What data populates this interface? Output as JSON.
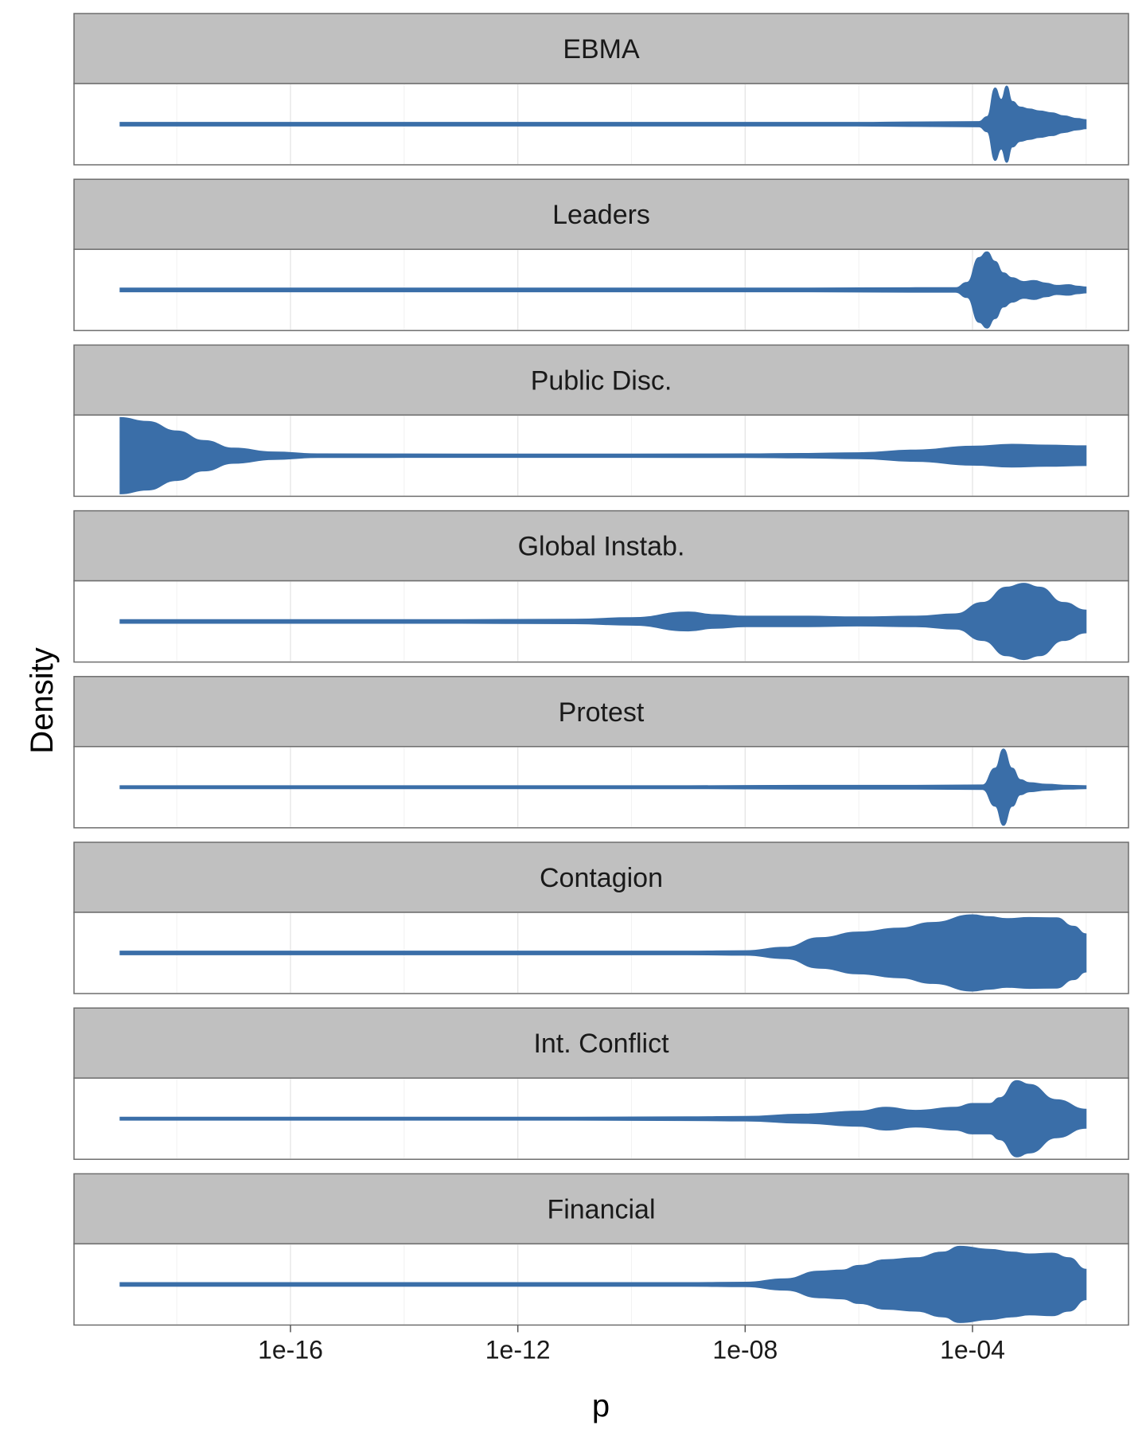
{
  "chart_data": {
    "type": "violin",
    "xlabel": "p",
    "ylabel": "Density",
    "x_scale": "log10",
    "xlim": [
      1e-20,
      0.1
    ],
    "x_ticks": [
      {
        "value": 1e-16,
        "label": "1e-16"
      },
      {
        "value": 1e-12,
        "label": "1e-12"
      },
      {
        "value": 1e-08,
        "label": "1e-08"
      },
      {
        "value": 0.0001,
        "label": "1e-04"
      }
    ],
    "grid": true,
    "fill_color": "#3a6ea8",
    "series": [
      {
        "name": "EBMA",
        "profile": [
          [
            1e-19,
            0.05
          ],
          [
            1e-06,
            0.05
          ],
          [
            1e-05,
            0.06
          ],
          [
            0.00013,
            0.07
          ],
          [
            0.00018,
            0.2
          ],
          [
            0.00025,
            0.95
          ],
          [
            0.00032,
            0.65
          ],
          [
            0.0004,
            1.0
          ],
          [
            0.0005,
            0.6
          ],
          [
            0.0007,
            0.45
          ],
          [
            0.001,
            0.4
          ],
          [
            0.0015,
            0.35
          ],
          [
            0.0025,
            0.3
          ],
          [
            0.004,
            0.22
          ],
          [
            0.007,
            0.15
          ],
          [
            0.01,
            0.12
          ]
        ]
      },
      {
        "name": "Leaders",
        "profile": [
          [
            1e-19,
            0.05
          ],
          [
            1e-07,
            0.05
          ],
          [
            1e-05,
            0.06
          ],
          [
            5e-05,
            0.06
          ],
          [
            8e-05,
            0.2
          ],
          [
            0.00013,
            0.85
          ],
          [
            0.00018,
            1.0
          ],
          [
            0.00025,
            0.75
          ],
          [
            0.00035,
            0.45
          ],
          [
            0.0005,
            0.32
          ],
          [
            0.0008,
            0.22
          ],
          [
            0.0012,
            0.25
          ],
          [
            0.002,
            0.18
          ],
          [
            0.003,
            0.12
          ],
          [
            0.005,
            0.14
          ],
          [
            0.007,
            0.1
          ],
          [
            0.01,
            0.08
          ]
        ]
      },
      {
        "name": "Public Disc.",
        "profile": [
          [
            1e-19,
            1.0
          ],
          [
            3e-19,
            0.9
          ],
          [
            1e-18,
            0.65
          ],
          [
            3e-18,
            0.4
          ],
          [
            1e-17,
            0.2
          ],
          [
            5e-17,
            0.1
          ],
          [
            3e-16,
            0.05
          ],
          [
            1e-13,
            0.045
          ],
          [
            1e-10,
            0.045
          ],
          [
            1e-08,
            0.05
          ],
          [
            1e-07,
            0.06
          ],
          [
            1e-06,
            0.08
          ],
          [
            1e-05,
            0.15
          ],
          [
            0.0001,
            0.25
          ],
          [
            0.0005,
            0.3
          ],
          [
            0.002,
            0.28
          ],
          [
            0.01,
            0.26
          ]
        ]
      },
      {
        "name": "Global Instab.",
        "profile": [
          [
            1e-19,
            0.05
          ],
          [
            1e-13,
            0.05
          ],
          [
            1e-11,
            0.06
          ],
          [
            1e-10,
            0.1
          ],
          [
            1e-09,
            0.25
          ],
          [
            3e-09,
            0.18
          ],
          [
            1e-08,
            0.14
          ],
          [
            1e-07,
            0.14
          ],
          [
            1e-06,
            0.12
          ],
          [
            1e-05,
            0.14
          ],
          [
            5e-05,
            0.2
          ],
          [
            0.00015,
            0.5
          ],
          [
            0.0004,
            0.9
          ],
          [
            0.0008,
            1.0
          ],
          [
            0.0015,
            0.9
          ],
          [
            0.004,
            0.5
          ],
          [
            0.01,
            0.3
          ]
        ]
      },
      {
        "name": "Protest",
        "profile": [
          [
            1e-19,
            0.04
          ],
          [
            1e-09,
            0.04
          ],
          [
            1e-07,
            0.05
          ],
          [
            1e-05,
            0.05
          ],
          [
            0.00015,
            0.06
          ],
          [
            0.00025,
            0.5
          ],
          [
            0.00035,
            1.0
          ],
          [
            0.0005,
            0.5
          ],
          [
            0.0007,
            0.2
          ],
          [
            0.001,
            0.12
          ],
          [
            0.002,
            0.08
          ],
          [
            0.005,
            0.05
          ],
          [
            0.01,
            0.04
          ]
        ]
      },
      {
        "name": "Contagion",
        "profile": [
          [
            1e-19,
            0.05
          ],
          [
            1e-09,
            0.05
          ],
          [
            1e-08,
            0.06
          ],
          [
            5e-08,
            0.15
          ],
          [
            2e-07,
            0.4
          ],
          [
            1e-06,
            0.55
          ],
          [
            5e-06,
            0.65
          ],
          [
            2e-05,
            0.8
          ],
          [
            0.0001,
            1.0
          ],
          [
            0.0002,
            0.95
          ],
          [
            0.0004,
            0.9
          ],
          [
            0.001,
            0.93
          ],
          [
            0.003,
            0.92
          ],
          [
            0.006,
            0.7
          ],
          [
            0.01,
            0.5
          ]
        ]
      },
      {
        "name": "Int. Conflict",
        "profile": [
          [
            1e-19,
            0.04
          ],
          [
            1e-11,
            0.04
          ],
          [
            1e-09,
            0.05
          ],
          [
            1e-08,
            0.06
          ],
          [
            1e-07,
            0.12
          ],
          [
            1e-06,
            0.2
          ],
          [
            3e-06,
            0.3
          ],
          [
            1e-05,
            0.22
          ],
          [
            5e-05,
            0.3
          ],
          [
            0.0001,
            0.4
          ],
          [
            0.0002,
            0.4
          ],
          [
            0.0003,
            0.55
          ],
          [
            0.0006,
            1.0
          ],
          [
            0.001,
            0.9
          ],
          [
            0.003,
            0.5
          ],
          [
            0.01,
            0.25
          ]
        ]
      },
      {
        "name": "Financial",
        "profile": [
          [
            1e-19,
            0.05
          ],
          [
            1e-09,
            0.05
          ],
          [
            1e-08,
            0.06
          ],
          [
            5e-08,
            0.15
          ],
          [
            2e-07,
            0.35
          ],
          [
            5e-07,
            0.38
          ],
          [
            1e-06,
            0.5
          ],
          [
            3e-06,
            0.65
          ],
          [
            1e-05,
            0.7
          ],
          [
            3e-05,
            0.85
          ],
          [
            6e-05,
            1.0
          ],
          [
            0.0002,
            0.92
          ],
          [
            0.0005,
            0.85
          ],
          [
            0.001,
            0.8
          ],
          [
            0.0025,
            0.82
          ],
          [
            0.005,
            0.7
          ],
          [
            0.01,
            0.4
          ]
        ]
      }
    ]
  }
}
